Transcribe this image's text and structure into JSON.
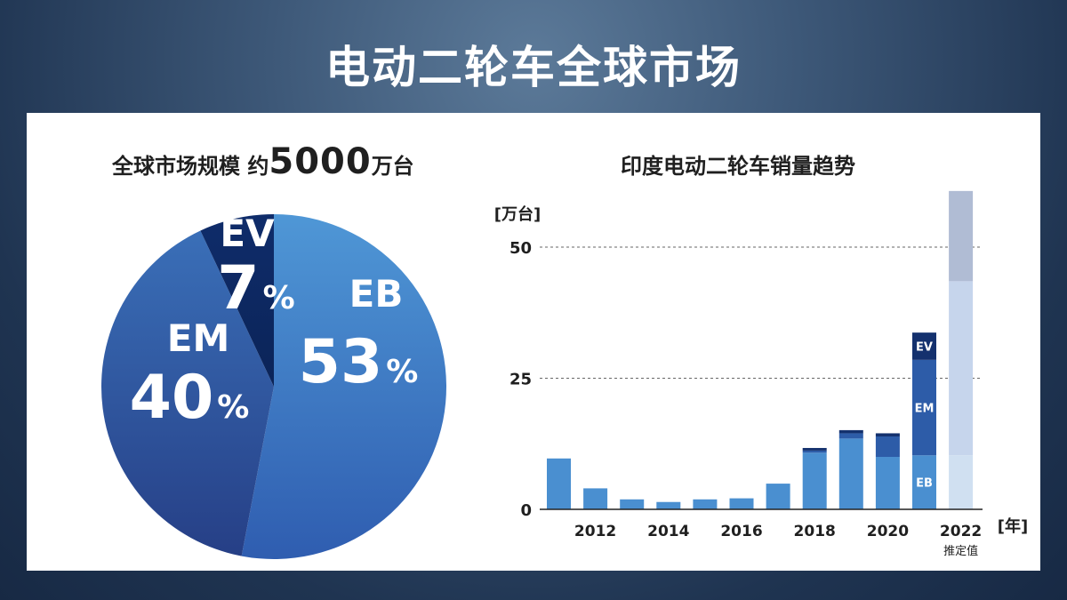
{
  "page": {
    "title": "电动二轮车全球市场"
  },
  "left": {
    "title_prefix": "全球市场规模 约",
    "title_number": "5000",
    "title_suffix": "万台"
  },
  "right": {
    "title": "印度电动二轮车销量趋势"
  },
  "chart_data": [
    {
      "type": "pie",
      "title": "全球市场规模 约5000万台",
      "slices": [
        {
          "name": "EB",
          "value": 53,
          "label": "53",
          "unit": "%",
          "color": "#3b7cc4"
        },
        {
          "name": "EM",
          "value": 40,
          "label": "40",
          "unit": "%",
          "color": "#2e59a0"
        },
        {
          "name": "EV",
          "value": 7,
          "label": "7",
          "unit": "%",
          "color": "#0e2a66"
        }
      ]
    },
    {
      "type": "bar",
      "title": "印度电动二轮车销量趋势",
      "ylabel": "[万台]",
      "xlabel": "[年]",
      "ylim": [
        0,
        60
      ],
      "yticks": [
        0,
        25,
        50
      ],
      "x_tick_labels": [
        "2012",
        "2014",
        "2016",
        "2018",
        "2020",
        "2022"
      ],
      "x_tick_note": "推定值",
      "grid": "dashed at 25 and 50",
      "bars": [
        {
          "year": 2011,
          "eb": 9.7,
          "em": 0,
          "ev": 0
        },
        {
          "year": 2012,
          "eb": 4.0,
          "em": 0,
          "ev": 0
        },
        {
          "year": 2013,
          "eb": 1.9,
          "em": 0,
          "ev": 0
        },
        {
          "year": 2014,
          "eb": 1.4,
          "em": 0,
          "ev": 0
        },
        {
          "year": 2015,
          "eb": 1.9,
          "em": 0,
          "ev": 0
        },
        {
          "year": 2016,
          "eb": 2.1,
          "em": 0,
          "ev": 0
        },
        {
          "year": 2017,
          "eb": 4.9,
          "em": 0,
          "ev": 0
        },
        {
          "year": 2018,
          "eb": 10.8,
          "em": 0.4,
          "ev": 0.5
        },
        {
          "year": 2019,
          "eb": 13.5,
          "em": 1.0,
          "ev": 0.6
        },
        {
          "year": 2020,
          "eb": 10.0,
          "em": 3.9,
          "ev": 0.6
        },
        {
          "year": 2021,
          "eb": 10.3,
          "em": 18.2,
          "ev": 5.2
        },
        {
          "year": 2022,
          "eb": 10.3,
          "em": 33.2,
          "ev": 17.2,
          "estimate": true
        }
      ],
      "stack_labels": [
        "EB",
        "EM",
        "EV"
      ],
      "colors": {
        "eb": "#4a8fd0",
        "em": "#2d5ca8",
        "ev": "#14316e",
        "eb_est": "#d0e0f1",
        "em_est": "#c6d5ec",
        "ev_est": "#b0bcd4"
      }
    }
  ]
}
